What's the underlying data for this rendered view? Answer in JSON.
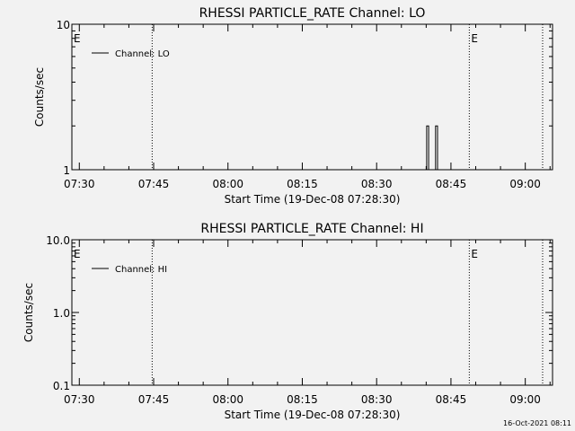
{
  "footer": {
    "timestamp": "16-Oct-2021 08:11"
  },
  "chart_data": [
    {
      "type": "line",
      "title": "RHESSI PARTICLE_RATE Channel: LO",
      "xlabel": "Start Time (19-Dec-08 07:28:30)",
      "ylabel": "Counts/sec",
      "x_ticks": [
        "07:30",
        "07:45",
        "08:00",
        "08:15",
        "08:30",
        "08:45",
        "09:00"
      ],
      "x_tick_minutes": [
        1.5,
        16.5,
        31.5,
        46.5,
        61.5,
        76.5,
        91.5
      ],
      "xlim": [
        0,
        97
      ],
      "y_scale": "log",
      "ylim": [
        1,
        10
      ],
      "y_ticks": [
        "1",
        "10"
      ],
      "y_tick_values": [
        1,
        10
      ],
      "grid": false,
      "legend": {
        "position": "top-left",
        "entries": [
          "Channel: LO"
        ]
      },
      "markers": [
        {
          "label": "E",
          "minute": 0
        },
        {
          "label": "E",
          "minute": 80.2
        }
      ],
      "vlines_minutes": [
        16.2,
        80.2,
        95.0
      ],
      "series": [
        {
          "name": "Channel: LO",
          "x_minutes": [
            71.6,
            71.6,
            72.0,
            72.0,
            73.4,
            73.4,
            73.8,
            73.8
          ],
          "y": [
            1,
            2,
            2,
            1,
            1,
            2,
            2,
            1
          ]
        }
      ]
    },
    {
      "type": "line",
      "title": "RHESSI PARTICLE_RATE Channel: HI",
      "xlabel": "Start Time (19-Dec-08 07:28:30)",
      "ylabel": "Counts/sec",
      "x_ticks": [
        "07:30",
        "07:45",
        "08:00",
        "08:15",
        "08:30",
        "08:45",
        "09:00"
      ],
      "x_tick_minutes": [
        1.5,
        16.5,
        31.5,
        46.5,
        61.5,
        76.5,
        91.5
      ],
      "xlim": [
        0,
        97
      ],
      "y_scale": "log",
      "ylim": [
        0.1,
        10
      ],
      "y_ticks": [
        "0.1",
        "1.0",
        "10.0"
      ],
      "y_tick_values": [
        0.1,
        1,
        10
      ],
      "grid": false,
      "legend": {
        "position": "top-left",
        "entries": [
          "Channel: HI"
        ]
      },
      "markers": [
        {
          "label": "E",
          "minute": 0
        },
        {
          "label": "E",
          "minute": 80.2
        }
      ],
      "vlines_minutes": [
        16.2,
        80.2,
        95.0
      ],
      "series": [
        {
          "name": "Channel: HI",
          "x_minutes": [],
          "y": []
        }
      ]
    }
  ]
}
